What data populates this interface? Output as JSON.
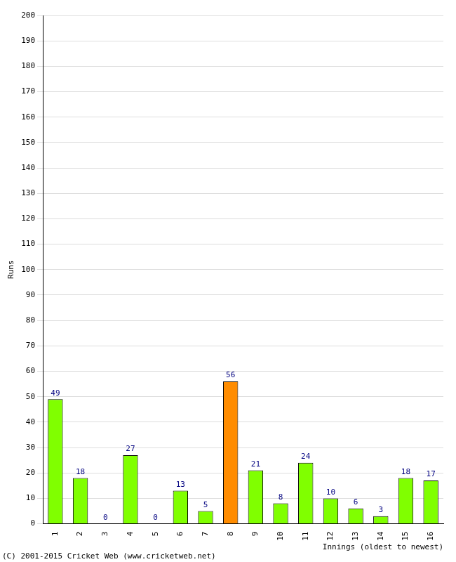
{
  "chart_data": {
    "type": "bar",
    "x_label": "Innings (oldest to newest)",
    "y_label": "Runs",
    "annotations": [
      "(C) 2001-2015 Cricket Web (www.cricketweb.net)"
    ],
    "categories": [
      "1",
      "2",
      "3",
      "4",
      "5",
      "6",
      "7",
      "8",
      "9",
      "10",
      "11",
      "12",
      "13",
      "14",
      "15",
      "16"
    ],
    "values": [
      49,
      18,
      0,
      27,
      0,
      13,
      5,
      56,
      21,
      8,
      24,
      10,
      6,
      3,
      18,
      17
    ],
    "colors": [
      "#80ff00",
      "#80ff00",
      "#80ff00",
      "#80ff00",
      "#80ff00",
      "#80ff00",
      "#80ff00",
      "#ff8c00",
      "#80ff00",
      "#80ff00",
      "#80ff00",
      "#80ff00",
      "#80ff00",
      "#80ff00",
      "#80ff00",
      "#80ff00"
    ],
    "ylim": [
      0,
      200
    ],
    "yticks": [
      0,
      10,
      20,
      30,
      40,
      50,
      60,
      70,
      80,
      90,
      100,
      110,
      120,
      130,
      140,
      150,
      160,
      170,
      180,
      190,
      200
    ],
    "grid": true,
    "data_labels": true
  }
}
